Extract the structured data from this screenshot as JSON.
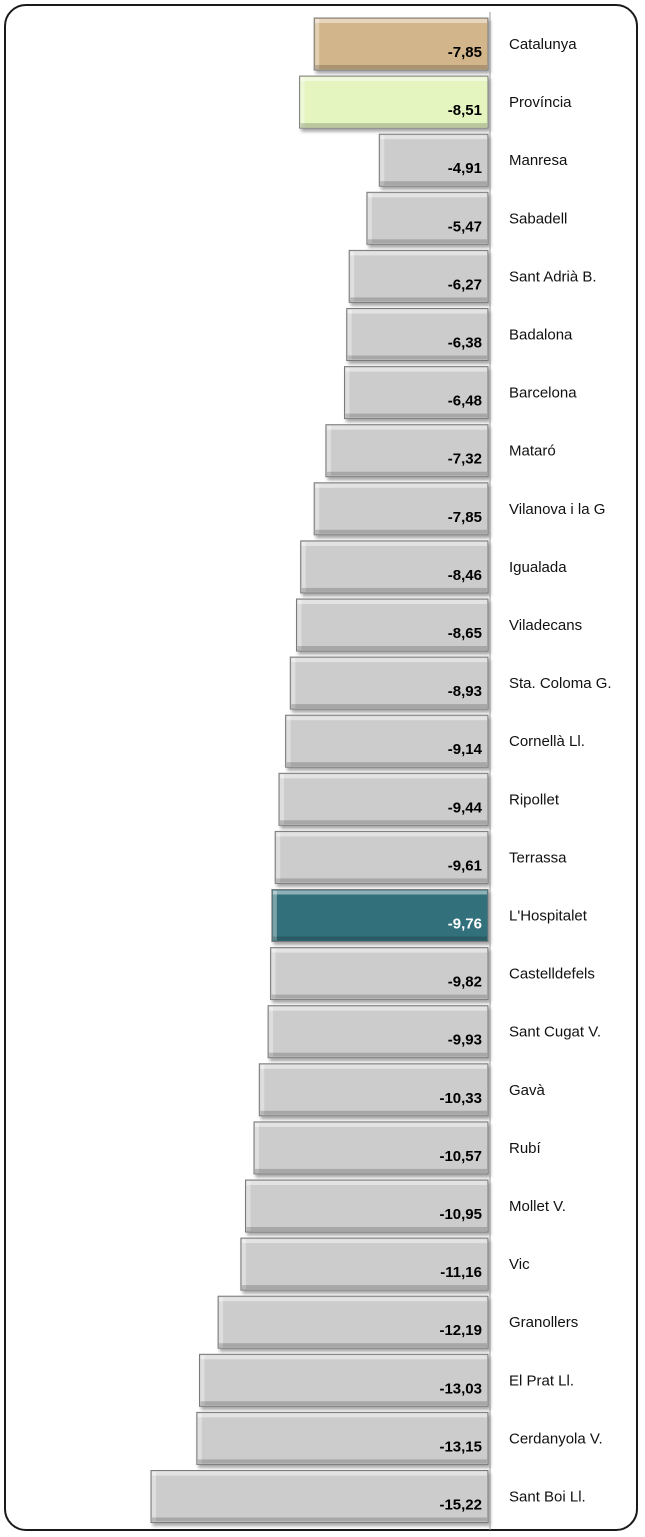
{
  "chart_data": {
    "type": "bar",
    "orientation": "horizontal",
    "categories": [
      "Catalunya",
      "Província",
      "Manresa",
      "Sabadell",
      "Sant Adrià B.",
      "Badalona",
      "Barcelona",
      "Mataró",
      "Vilanova  i la G",
      "Igualada",
      "Viladecans",
      "Sta. Coloma  G.",
      "Cornellà Ll.",
      "Ripollet",
      "Terrassa",
      "L'Hospitalet",
      "Castelldefels",
      "Sant Cugat V.",
      "Gavà",
      "Rubí",
      "Mollet V.",
      "Vic",
      "Granollers",
      "El Prat Ll.",
      "Cerdanyola V.",
      "Sant Boi Ll."
    ],
    "values": [
      -7.85,
      -8.51,
      -4.91,
      -5.47,
      -6.27,
      -6.38,
      -6.48,
      -7.32,
      -7.85,
      -8.46,
      -8.65,
      -8.93,
      -9.14,
      -9.44,
      -9.61,
      -9.76,
      -9.82,
      -9.93,
      -10.33,
      -10.57,
      -10.95,
      -11.16,
      -12.19,
      -13.03,
      -13.15,
      -15.22
    ],
    "value_labels": [
      "-7,85",
      "-8,51",
      "-4,91",
      "-5,47",
      "-6,27",
      "-6,38",
      "-6,48",
      "-7,32",
      "-7,85",
      "-8,46",
      "-8,65",
      "-8,93",
      "-9,14",
      "-9,44",
      "-9,61",
      "-9,76",
      "-9,82",
      "-9,93",
      "-10,33",
      "-10,57",
      "-10,95",
      "-11,16",
      "-12,19",
      "-13,03",
      "-13,15",
      "-15,22"
    ],
    "bar_colors": [
      "#d2b58a",
      "#e4f5c0",
      "#cccccc",
      "#cccccc",
      "#cccccc",
      "#cccccc",
      "#cccccc",
      "#cccccc",
      "#cccccc",
      "#cccccc",
      "#cccccc",
      "#cccccc",
      "#cccccc",
      "#cccccc",
      "#cccccc",
      "#31707c",
      "#cccccc",
      "#cccccc",
      "#cccccc",
      "#cccccc",
      "#cccccc",
      "#cccccc",
      "#cccccc",
      "#cccccc",
      "#cccccc",
      "#cccccc"
    ],
    "label_colors": [
      "#000000",
      "#000000",
      "#000000",
      "#000000",
      "#000000",
      "#000000",
      "#000000",
      "#000000",
      "#000000",
      "#000000",
      "#000000",
      "#000000",
      "#000000",
      "#000000",
      "#000000",
      "#ffffff",
      "#000000",
      "#000000",
      "#000000",
      "#000000",
      "#000000",
      "#000000",
      "#000000",
      "#000000",
      "#000000",
      "#000000"
    ],
    "xlim": [
      -15.22,
      0
    ],
    "grid": false,
    "legend": "none",
    "title": "",
    "xlabel": "",
    "ylabel": ""
  }
}
